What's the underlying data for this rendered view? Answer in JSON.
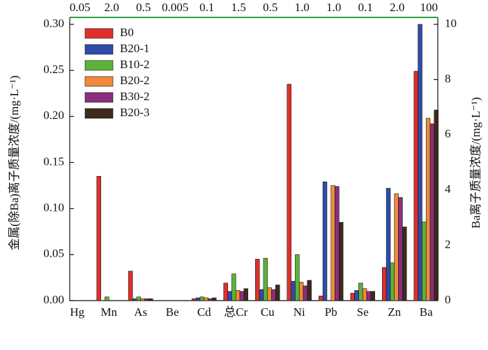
{
  "chart_data": {
    "type": "bar",
    "categories": [
      "Hg",
      "Mn",
      "As",
      "Be",
      "Cd",
      "总Cr",
      "Cu",
      "Ni",
      "Pb",
      "Se",
      "Zn",
      "Ba"
    ],
    "limits": [
      "0.05",
      "2.0",
      "0.5",
      "0.005",
      "0.1",
      "1.5",
      "0.5",
      "1.0",
      "1.0",
      "0.1",
      "2.0",
      "100"
    ],
    "limit_line_color": "#2e9e3e",
    "y2_categories": [
      "Ba"
    ],
    "ylabel": "金属(除Ba)离子质量浓度/(mg·L⁻¹)",
    "y2label": "Ba离子质量浓度/(mg·L⁻¹)",
    "ylim": [
      0,
      0.3
    ],
    "yticks": [
      {
        "value": 0,
        "label": "0.00"
      },
      {
        "value": 0.05,
        "label": "0.05"
      },
      {
        "value": 0.1,
        "label": "0.10"
      },
      {
        "value": 0.15,
        "label": "0.15"
      },
      {
        "value": 0.2,
        "label": "0.20"
      },
      {
        "value": 0.25,
        "label": "0.25"
      },
      {
        "value": 0.3,
        "label": "0.30"
      }
    ],
    "y2lim": [
      0,
      10
    ],
    "y2ticks": [
      0,
      2,
      4,
      6,
      8,
      10
    ],
    "legend": "upper left",
    "series": [
      {
        "name": "B0",
        "color": "#e0302c",
        "values": [
          0,
          0.135,
          0.032,
          0,
          0.002,
          0.019,
          0.045,
          0.235,
          0.005,
          0.008,
          0.036,
          8.3
        ]
      },
      {
        "name": "B20-1",
        "color": "#2f4da8",
        "values": [
          0,
          0,
          0.002,
          0,
          0.003,
          0.01,
          0.012,
          0.021,
          0.129,
          0.011,
          0.122,
          10.0
        ]
      },
      {
        "name": "B10-2",
        "color": "#5db33a",
        "values": [
          0,
          0.004,
          0.004,
          0,
          0.004,
          0.029,
          0.046,
          0.05,
          0,
          0.019,
          0.041,
          2.85
        ]
      },
      {
        "name": "B20-2",
        "color": "#f08a3a",
        "values": [
          0,
          0,
          0.002,
          0,
          0.003,
          0.011,
          0.014,
          0.02,
          0.125,
          0.013,
          0.116,
          6.6
        ]
      },
      {
        "name": "B30-2",
        "color": "#8a2f7e",
        "values": [
          0,
          0,
          0.002,
          0,
          0.002,
          0.01,
          0.012,
          0.016,
          0.124,
          0.01,
          0.112,
          6.4
        ]
      },
      {
        "name": "B20-3",
        "color": "#3e2a1e",
        "values": [
          0,
          0,
          0.002,
          0,
          0.003,
          0.013,
          0.017,
          0.022,
          0.085,
          0.01,
          0.08,
          6.9
        ]
      }
    ]
  }
}
